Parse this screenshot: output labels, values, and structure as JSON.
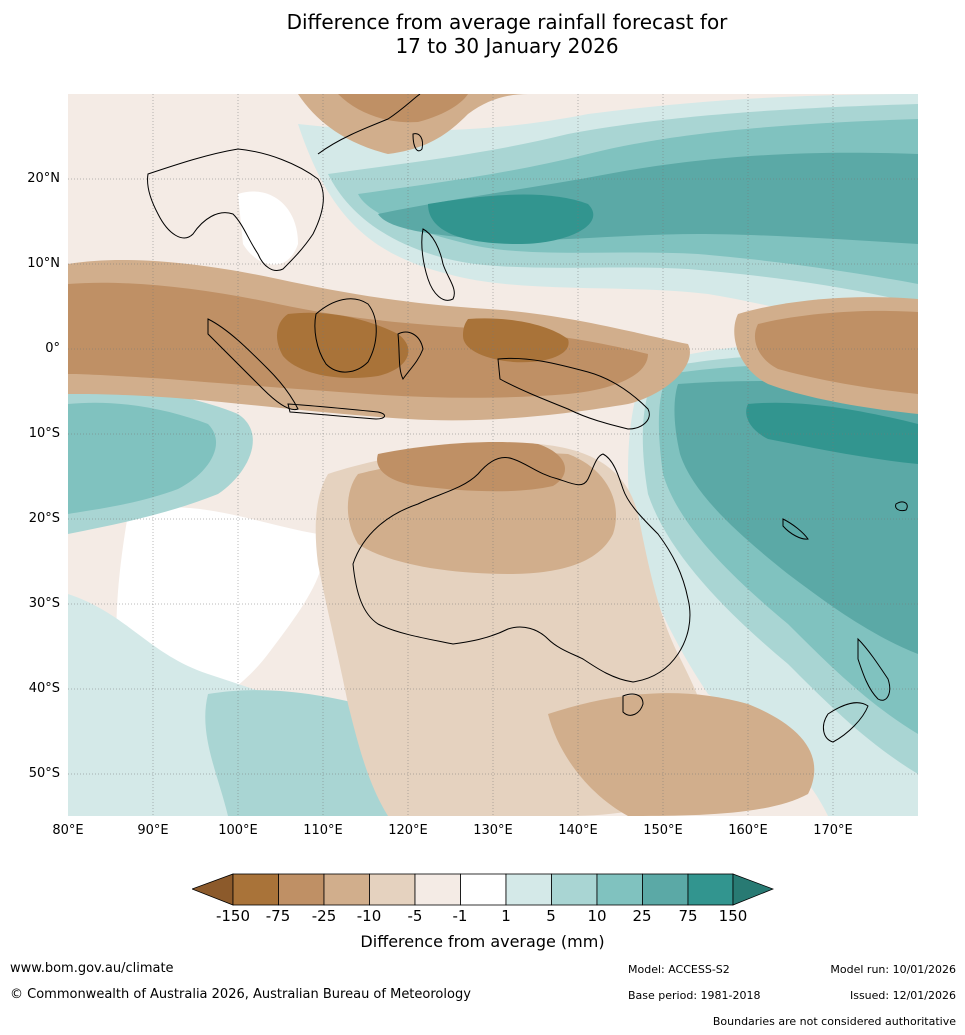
{
  "title": {
    "line1": "Difference from average rainfall forecast for",
    "line2": "17 to 30 January 2026"
  },
  "map": {
    "region": "Australia and Indo-Pacific",
    "lat_labels": [
      "20°N",
      "10°N",
      "0°",
      "10°S",
      "20°S",
      "30°S",
      "40°S",
      "50°S"
    ],
    "lon_labels": [
      "80°E",
      "90°E",
      "100°E",
      "110°E",
      "120°E",
      "130°E",
      "140°E",
      "150°E",
      "160°E",
      "170°E"
    ],
    "colors": {
      "dry_extreme": "#8c5a2b",
      "dry_150": "#a97339",
      "dry_75": "#bf9065",
      "dry_25": "#d1ae8c",
      "dry_10": "#e5d2bf",
      "dry_5": "#f4ebe5",
      "neutral": "#ffffff",
      "wet_1": "#d4e9e8",
      "wet_5": "#a9d5d3",
      "wet_10": "#80c2bf",
      "wet_25": "#5ba9a6",
      "wet_75": "#32958f",
      "wet_extreme": "#287a73"
    }
  },
  "legend": {
    "ticks": [
      "-150",
      "-75",
      "-25",
      "-10",
      "-5",
      "-1",
      "1",
      "5",
      "10",
      "25",
      "75",
      "150"
    ],
    "title": "Difference from average (mm)"
  },
  "footer": {
    "website": "www.bom.gov.au/climate",
    "copyright": "© Commonwealth of Australia 2026, Australian Bureau of Meteorology",
    "model": "Model: ACCESS-S2",
    "base_period": "Base period: 1981-2018",
    "model_run": "Model run: 10/01/2026",
    "issued": "Issued: 12/01/2026",
    "disclaimer": "Boundaries are not considered authoritative"
  }
}
